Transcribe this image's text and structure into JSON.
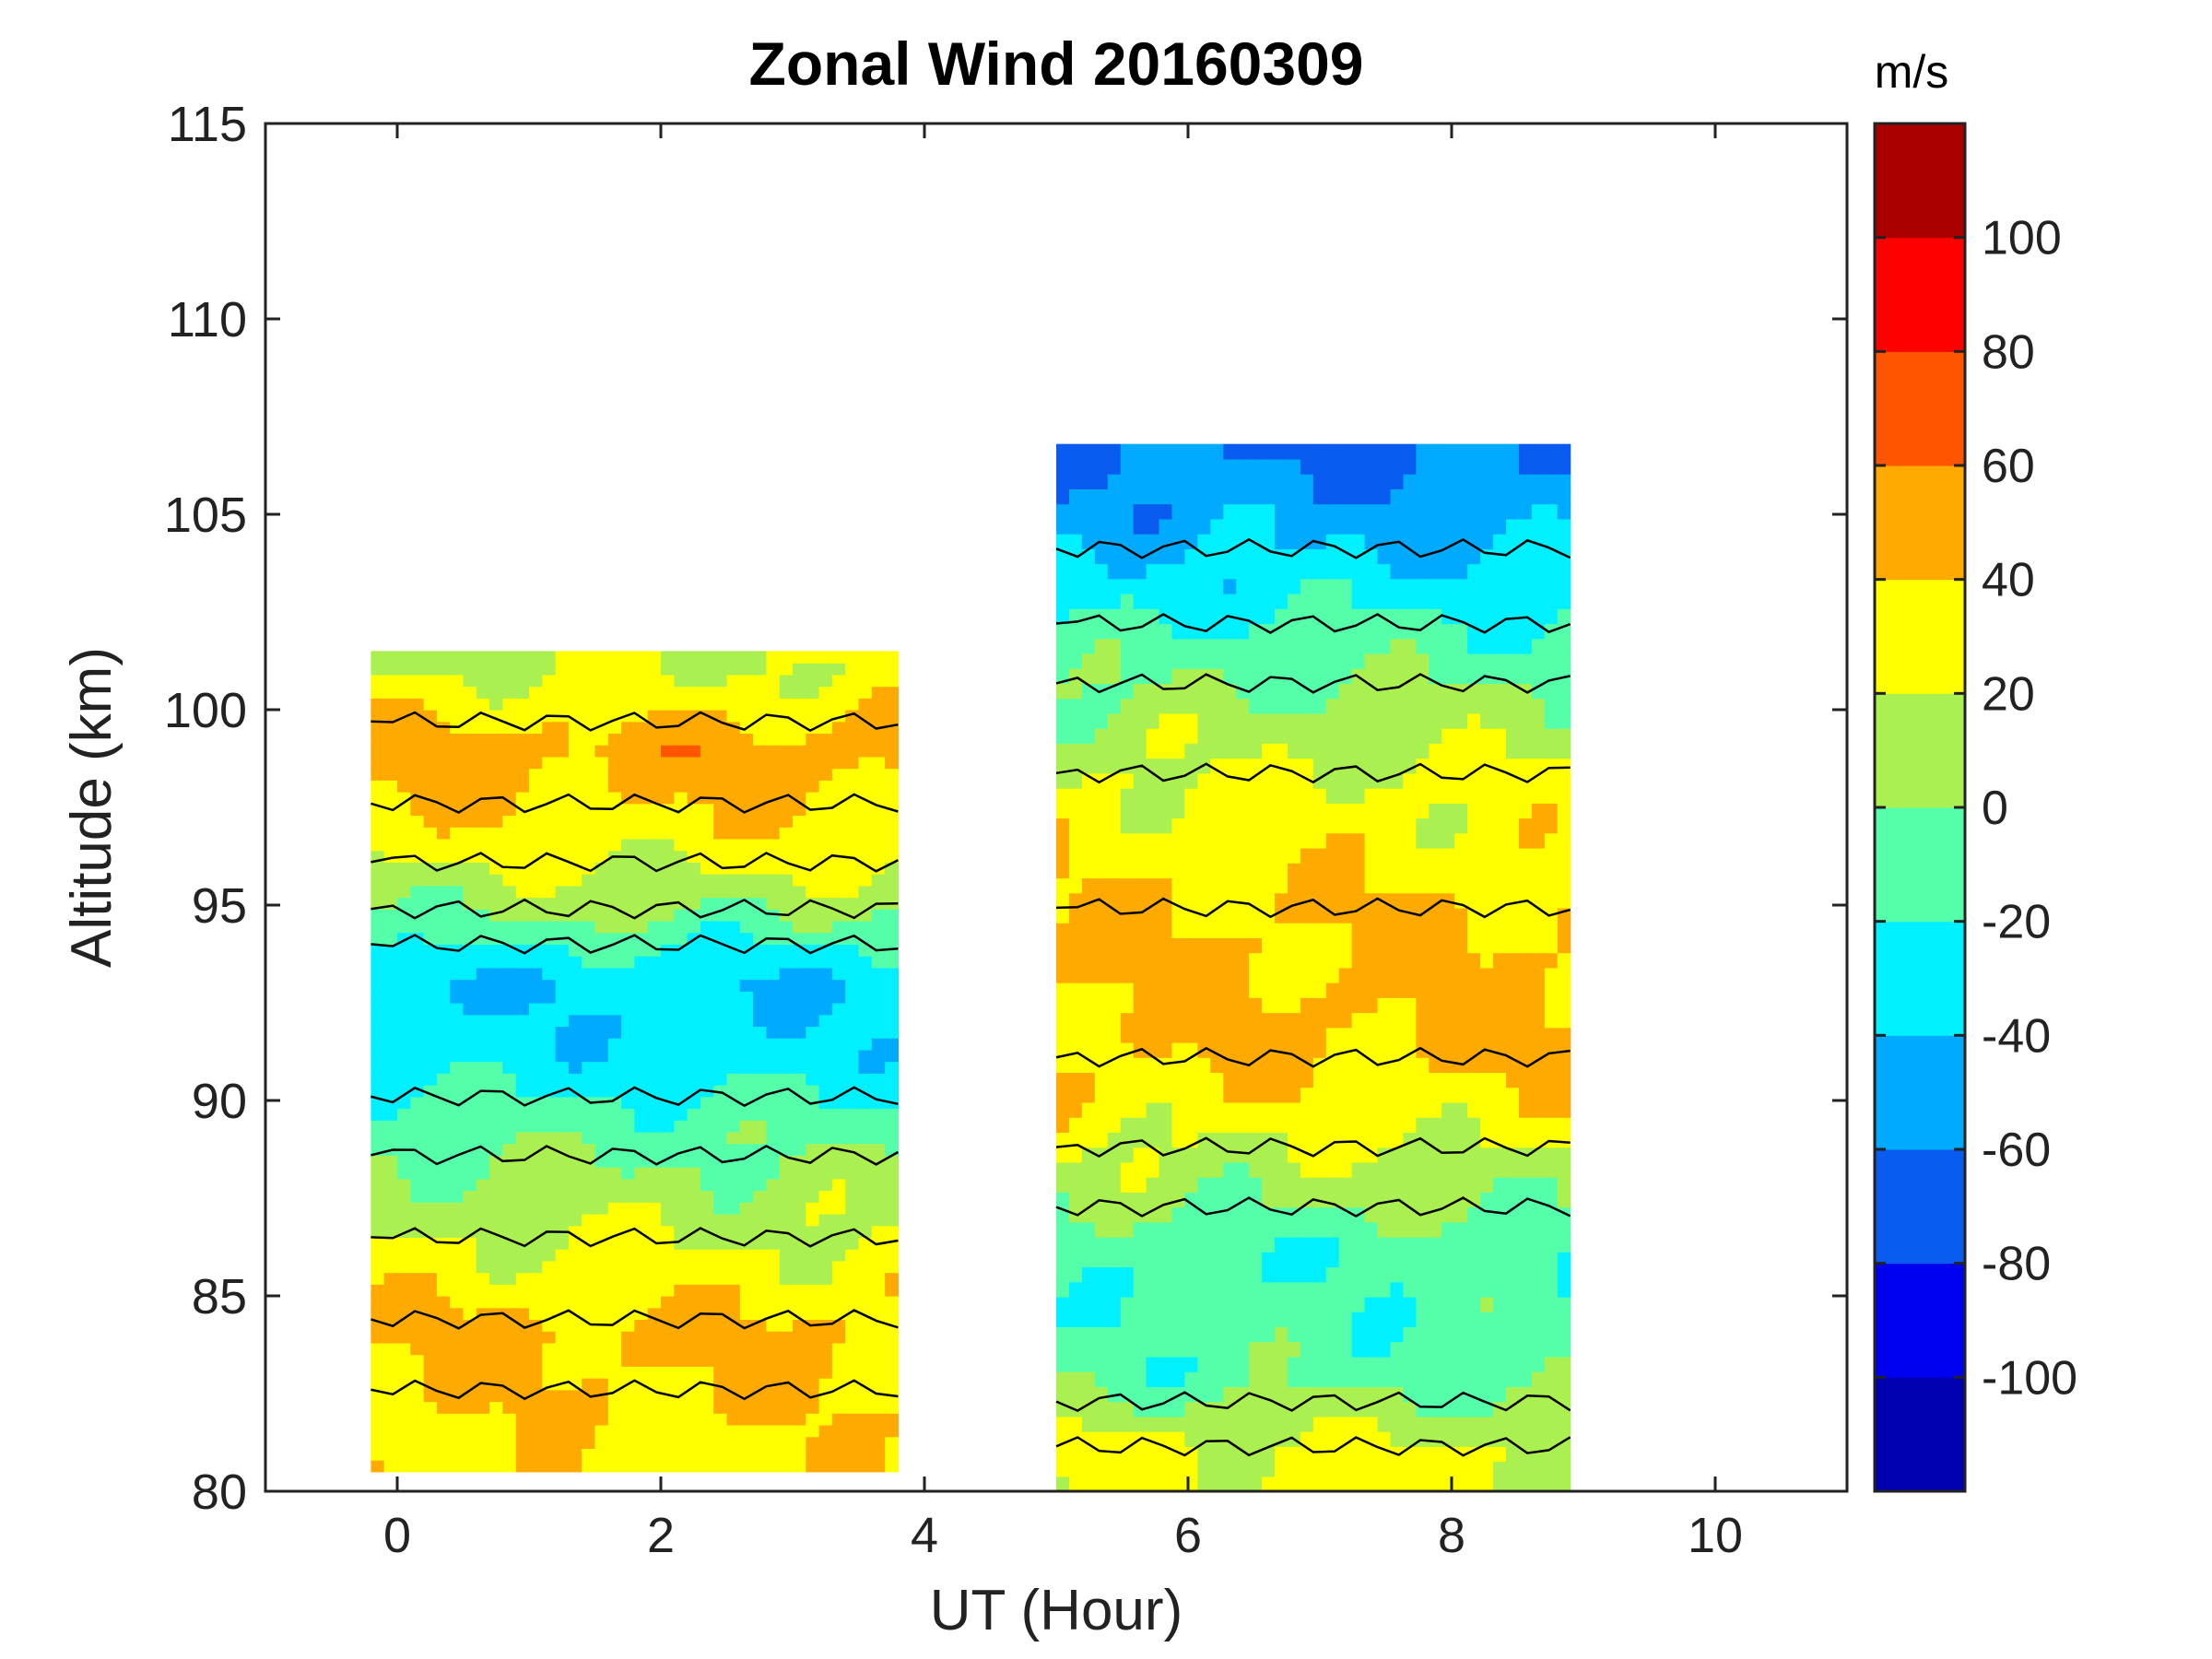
{
  "chart_data": {
    "type": "heatmap",
    "subtype": "filled-contour",
    "title": "Zonal Wind 20160309",
    "xlabel": "UT (Hour)",
    "ylabel": "Altitude (km)",
    "xlim": [
      -1,
      11
    ],
    "ylim": [
      80,
      115
    ],
    "xticks": [
      0,
      2,
      4,
      6,
      8,
      10
    ],
    "yticks": [
      80,
      85,
      90,
      95,
      100,
      105,
      110,
      115
    ],
    "colorbar": {
      "units": "m/s",
      "range": [
        -120,
        120
      ],
      "step": 20,
      "ticks": [
        -100,
        -80,
        -60,
        -40,
        -20,
        0,
        20,
        40,
        60,
        80,
        100
      ],
      "colors": [
        "#0000b0",
        "#0000f0",
        "#0a5cf0",
        "#00aaff",
        "#00f0ff",
        "#55ffaa",
        "#aaf050",
        "#ffff00",
        "#ffaa00",
        "#ff5500",
        "#ff0000",
        "#aa0000"
      ]
    },
    "segments": [
      {
        "ut_range": [
          -0.2,
          3.8
        ],
        "altitude_range": [
          80.5,
          101.5
        ],
        "profiles": [
          {
            "altitude": 81,
            "wind": 35
          },
          {
            "altitude": 84,
            "wind": 45
          },
          {
            "altitude": 87,
            "wind": 15
          },
          {
            "altitude": 89,
            "wind": -5
          },
          {
            "altitude": 91,
            "wind": -30
          },
          {
            "altitude": 93,
            "wind": -40
          },
          {
            "altitude": 95,
            "wind": 5
          },
          {
            "altitude": 97,
            "wind": 35
          },
          {
            "altitude": 99,
            "wind": 50
          },
          {
            "altitude": 101,
            "wind": 20
          }
        ]
      },
      {
        "ut_range": [
          5.0,
          8.9
        ],
        "altitude_range": [
          80.0,
          106.8
        ],
        "profiles": [
          {
            "altitude": 81,
            "wind": 25
          },
          {
            "altitude": 83,
            "wind": -10
          },
          {
            "altitude": 86,
            "wind": -15
          },
          {
            "altitude": 88,
            "wind": 10
          },
          {
            "altitude": 90,
            "wind": 35
          },
          {
            "altitude": 92,
            "wind": 45
          },
          {
            "altitude": 95,
            "wind": 40
          },
          {
            "altitude": 98,
            "wind": 25
          },
          {
            "altitude": 101,
            "wind": -5
          },
          {
            "altitude": 104,
            "wind": -40
          },
          {
            "altitude": 106,
            "wind": -60
          }
        ]
      }
    ]
  }
}
